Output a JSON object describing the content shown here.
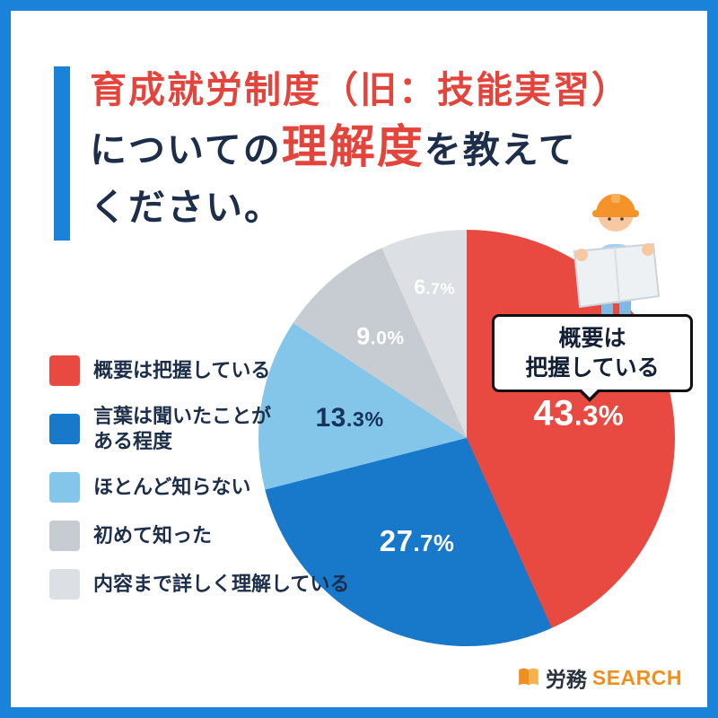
{
  "title": {
    "line1": "育成就労制度（旧：技能実習）",
    "line2_pre": "についての",
    "line2_highlight": "理解度",
    "line2_post": "を教えて",
    "line3": "ください。"
  },
  "callout": {
    "text": "概要は\n把握している"
  },
  "logo": {
    "text_dark": "労務",
    "text_orange": "SEARCH"
  },
  "theme": {
    "frame_blue": "#1b82d9",
    "accent_red": "#e3453c",
    "navy": "#1c2e4a",
    "brand_orange": "#ef8f1f"
  },
  "chart_data": {
    "type": "pie",
    "title": "育成就労制度（旧：技能実習）についての理解度",
    "labels": [
      "概要は把握している",
      "言葉は聞いたことがある程度",
      "ほとんど知らない",
      "初めて知った",
      "内容まで詳しく理解している"
    ],
    "values": [
      43.3,
      27.7,
      13.3,
      9.0,
      6.7
    ],
    "value_labels": [
      "43.3%",
      "27.7%",
      "13.3%",
      "9.0%",
      "6.7%"
    ],
    "colors": [
      "#e84a41",
      "#1878ca",
      "#84c6ea",
      "#c6ccd1",
      "#dce0e4"
    ],
    "total": 100,
    "start_angle_deg": 0,
    "direction": "clockwise",
    "legend_position": "left",
    "legend": [
      {
        "label": "概要は把握している",
        "color": "#e84a41"
      },
      {
        "label": "言葉は聞いたことが\nある程度",
        "color": "#1878ca"
      },
      {
        "label": "ほとんど知らない",
        "color": "#84c6ea"
      },
      {
        "label": "初めて知った",
        "color": "#c6ccd1"
      },
      {
        "label": "内容まで詳しく理解している",
        "color": "#dce0e4"
      }
    ]
  }
}
